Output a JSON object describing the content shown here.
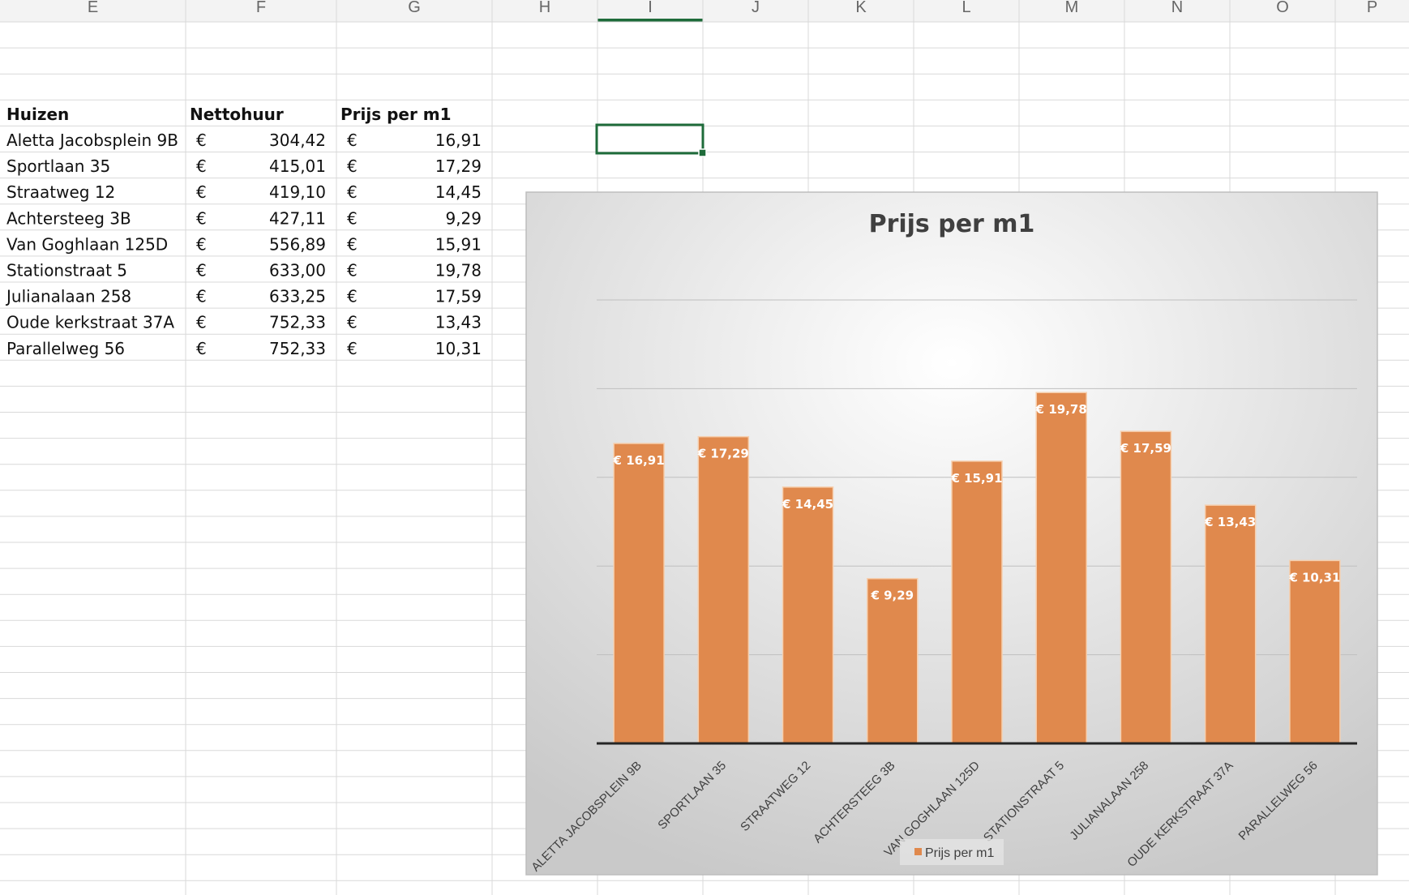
{
  "columns": [
    "E",
    "F",
    "G",
    "H",
    "I",
    "J",
    "K",
    "L",
    "M",
    "N",
    "O",
    "P"
  ],
  "selected_column": "I",
  "table": {
    "headers": [
      "Huizen",
      "Nettohuur",
      "Prijs per m1"
    ],
    "currency_symbol": "€",
    "rows": [
      {
        "name": "Aletta Jacobsplein 9B",
        "rent": "304,42",
        "price": "16,91"
      },
      {
        "name": "Sportlaan 35",
        "rent": "415,01",
        "price": "17,29"
      },
      {
        "name": "Straatweg 12",
        "rent": "419,10",
        "price": "14,45"
      },
      {
        "name": "Achtersteeg 3B",
        "rent": "427,11",
        "price": "9,29"
      },
      {
        "name": "Van Goghlaan 125D",
        "rent": "556,89",
        "price": "15,91"
      },
      {
        "name": "Stationstraat 5",
        "rent": "633,00",
        "price": "19,78"
      },
      {
        "name": "Julianalaan 258",
        "rent": "633,25",
        "price": "17,59"
      },
      {
        "name": "Oude kerkstraat 37A",
        "rent": "752,33",
        "price": "13,43"
      },
      {
        "name": "Parallelweg 56",
        "rent": "752,33",
        "price": "10,31"
      }
    ]
  },
  "chart_data": {
    "type": "bar",
    "title": "Prijs per m1",
    "categories": [
      "ALETTA JACOBSPLEIN 9B",
      "SPORTLAAN 35",
      "STRAATWEG 12",
      "ACHTERSTEEG 3B",
      "VAN GOGHLAAN 125D",
      "STATIONSTRAAT 5",
      "JULIANALAAN 258",
      "OUDE KERKSTRAAT 37A",
      "PARALLELWEG 56"
    ],
    "series": [
      {
        "name": "Prijs per m1",
        "values": [
          16.91,
          17.29,
          14.45,
          9.29,
          15.91,
          19.78,
          17.59,
          13.43,
          10.31
        ]
      }
    ],
    "data_labels": [
      "€ 16,91",
      "€ 17,29",
      "€ 14,45",
      "€ 9,29",
      "€ 15,91",
      "€ 19,78",
      "€ 17,59",
      "€ 13,43",
      "€ 10,31"
    ],
    "ylim": [
      0,
      25
    ],
    "gridlines": [
      5,
      10,
      15,
      20,
      25
    ],
    "grid": true,
    "bar_color": "#e0894d",
    "legend_position": "bottom"
  },
  "colors": {
    "selection": "#1e6b3a",
    "bar": "#e0894d"
  }
}
